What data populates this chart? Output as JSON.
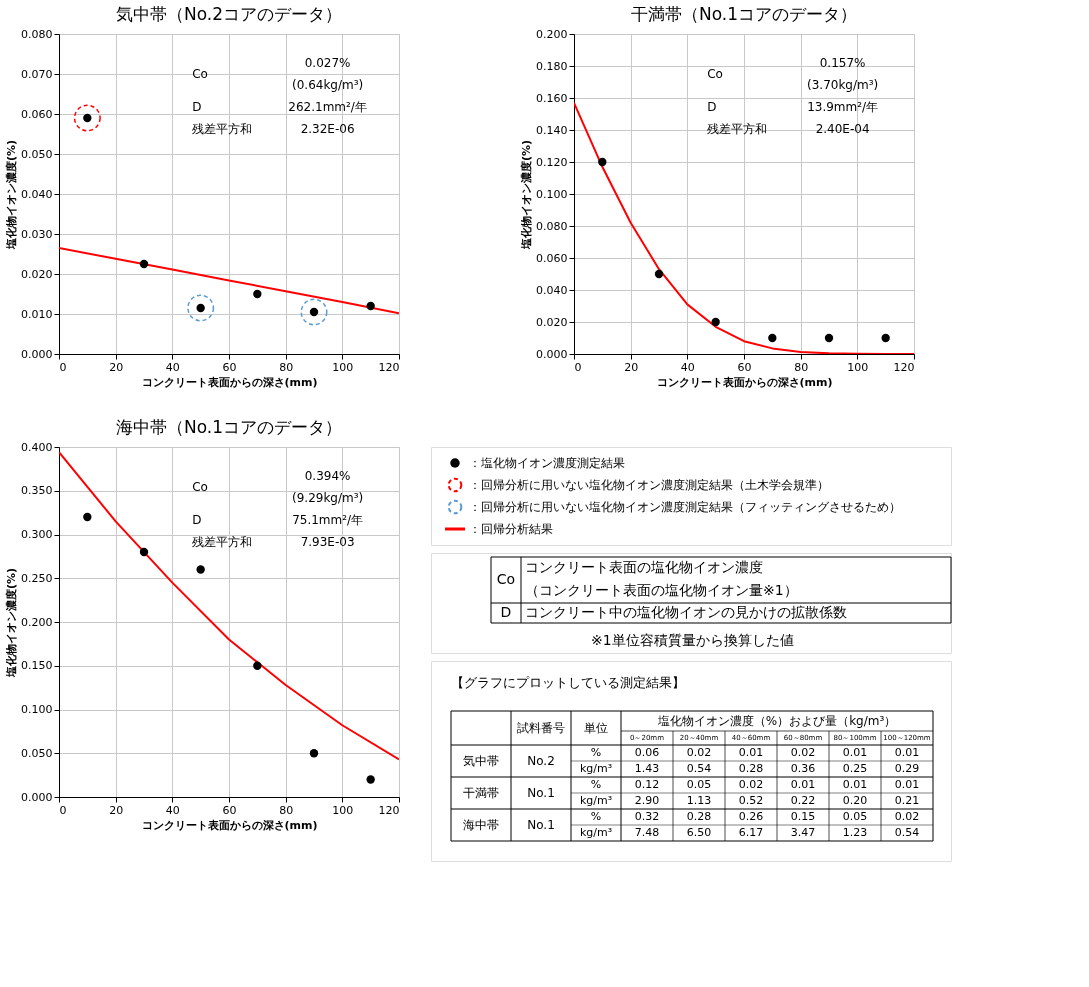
{
  "chart_data": [
    {
      "type": "scatter",
      "title": "気中帯（No.2コアのデータ）",
      "xlabel": "コンクリート表面からの深さ(mm)",
      "ylabel": "塩化物イオン濃度(%)",
      "xlim": [
        0,
        120
      ],
      "xticks": [
        0,
        20,
        40,
        60,
        80,
        100,
        120
      ],
      "ylim": [
        0,
        0.08
      ],
      "yticks": [
        {
          "value": 0,
          "label": "0.000"
        },
        {
          "value": 0.01,
          "label": "0.010"
        },
        {
          "value": 0.02,
          "label": "0.020"
        },
        {
          "value": 0.03,
          "label": "0.030"
        },
        {
          "value": 0.04,
          "label": "0.040"
        },
        {
          "value": 0.05,
          "label": "0.050"
        },
        {
          "value": 0.06,
          "label": "0.060"
        },
        {
          "value": 0.07,
          "label": "0.070"
        },
        {
          "value": 0.08,
          "label": "0.080"
        }
      ],
      "grid": true,
      "legend": "bottom right",
      "series": [
        {
          "name": "：回帰分析に用いない塩化物イオン濃度測定結果（土木学会規準）",
          "type": "scatter",
          "marker": "circle",
          "line_style": "dashed",
          "color": "#ff0000",
          "x": [
            10
          ],
          "values": [
            0.059
          ]
        },
        {
          "name": "：回帰分析に用いない塩化物イオン濃度測定結果（フィッティングさせるため）",
          "type": "scatter",
          "marker": "circle",
          "line_style": "dashed",
          "color": "#5b9bd5",
          "x": [
            50,
            90
          ],
          "values": [
            0.0115,
            0.0105
          ]
        },
        {
          "name": "：回帰分析結果",
          "type": "line",
          "line_style": "solid",
          "color": "#ff0000",
          "x": [
            0,
            20,
            40,
            60,
            80,
            100,
            120
          ],
          "values": [
            0.0265,
            0.0238,
            0.0211,
            0.0184,
            0.0157,
            0.013,
            0.0102
          ]
        },
        {
          "name": "：塩化物イオン濃度測定結果",
          "type": "scatter",
          "marker": "circle",
          "line_style": "solid",
          "color": "#000000",
          "x": [
            10,
            30,
            50,
            70,
            90,
            110
          ],
          "values": [
            0.059,
            0.0225,
            0.0115,
            0.015,
            0.0105,
            0.012
          ]
        }
      ],
      "annotations": [
        "Co",
        "0.027%",
        "(0.64kg/m³)",
        "D",
        "262.1mm²/年",
        "残差平方和",
        "2.32E-06"
      ]
    },
    {
      "type": "scatter",
      "title": "干満帯（No.1コアのデータ）",
      "xlabel": "コンクリート表面からの深さ(mm)",
      "ylabel": "塩化物イオン濃度(%)",
      "xlim": [
        0,
        120
      ],
      "xticks": [
        0,
        20,
        40,
        60,
        80,
        100,
        120
      ],
      "ylim": [
        0,
        0.2
      ],
      "yticks": [
        {
          "value": 0,
          "label": "0.000"
        },
        {
          "value": 0.02,
          "label": "0.020"
        },
        {
          "value": 0.04,
          "label": "0.040"
        },
        {
          "value": 0.06,
          "label": "0.060"
        },
        {
          "value": 0.08,
          "label": "0.080"
        },
        {
          "value": 0.1,
          "label": "0.100"
        },
        {
          "value": 0.12,
          "label": "0.120"
        },
        {
          "value": 0.14,
          "label": "0.140"
        },
        {
          "value": 0.16,
          "label": "0.160"
        },
        {
          "value": 0.18,
          "label": "0.180"
        },
        {
          "value": 0.2,
          "label": "0.200"
        }
      ],
      "grid": true,
      "series": [
        {
          "type": "line",
          "line_style": "solid",
          "color": "#ff0000",
          "x": [
            0,
            10,
            20,
            30,
            40,
            50,
            60,
            70,
            80,
            90,
            100,
            110,
            120
          ],
          "values": [
            0.157,
            0.117,
            0.082,
            0.053,
            0.031,
            0.017,
            0.008,
            0.0035,
            0.0013,
            0.0004,
            0.0001,
            0,
            0
          ]
        },
        {
          "type": "scatter",
          "marker": "circle",
          "line_style": "solid",
          "color": "#000000",
          "x": [
            10,
            30,
            50,
            70,
            90,
            110
          ],
          "values": [
            0.12,
            0.05,
            0.02,
            0.01,
            0.01,
            0.01
          ]
        }
      ],
      "annotations": [
        "Co",
        "0.157%",
        "(3.70kg/m³)",
        "D",
        "13.9mm²/年",
        "残差平方和",
        "2.40E-04"
      ]
    },
    {
      "type": "scatter",
      "title": "海中帯（No.1コアのデータ）",
      "xlabel": "コンクリート表面からの深さ(mm)",
      "ylabel": "塩化物イオン濃度(%)",
      "xlim": [
        0,
        120
      ],
      "xticks": [
        0,
        20,
        40,
        60,
        80,
        100,
        120
      ],
      "ylim": [
        0,
        0.4
      ],
      "yticks": [
        {
          "value": 0,
          "label": "0.000"
        },
        {
          "value": 0.05,
          "label": "0.050"
        },
        {
          "value": 0.1,
          "label": "0.100"
        },
        {
          "value": 0.15,
          "label": "0.150"
        },
        {
          "value": 0.2,
          "label": "0.200"
        },
        {
          "value": 0.25,
          "label": "0.250"
        },
        {
          "value": 0.3,
          "label": "0.300"
        },
        {
          "value": 0.35,
          "label": "0.350"
        },
        {
          "value": 0.4,
          "label": "0.400"
        }
      ],
      "grid": true,
      "series": [
        {
          "type": "line",
          "line_style": "solid",
          "color": "#ff0000",
          "x": [
            0,
            20,
            40,
            60,
            80,
            100,
            120
          ],
          "values": [
            0.394,
            0.315,
            0.245,
            0.18,
            0.128,
            0.082,
            0.043
          ]
        },
        {
          "type": "scatter",
          "marker": "circle",
          "line_style": "solid",
          "color": "#000000",
          "x": [
            10,
            30,
            50,
            70,
            90,
            110
          ],
          "values": [
            0.32,
            0.28,
            0.26,
            0.15,
            0.05,
            0.02
          ]
        }
      ],
      "annotations": [
        "Co",
        "0.394%",
        "(9.29kg/m³)",
        "D",
        "75.1mm²/年",
        "残差平方和",
        "7.93E-03"
      ]
    },
    {
      "type": "other",
      "annotations": [
        "Co",
        "コンクリート表面の塩化物イオン濃度",
        "（コンクリート表面の塩化物イオン量※1）",
        "D",
        "コンクリート中の塩化物イオンの見かけの拡散係数",
        "※1単位容積質量から換算した値"
      ]
    },
    {
      "type": "other",
      "title": "【グラフにプロットしている測定結果】",
      "xlabel": "塩化物イオン濃度（%）および量（kg/m³）",
      "annotations": [
        "試料番号"
      ],
      "categories": [
        "単位",
        "0～20mm",
        "20～40mm",
        "40～60mm",
        "60～80mm",
        "80～100mm",
        "100～120mm"
      ],
      "y_categories": [
        "気中帯",
        "干満帯",
        "海中帯"
      ],
      "y2_categories": [
        "No.2",
        "No.1",
        "No.1"
      ],
      "cell_labels": [
        [
          "%",
          "0.06",
          "0.02",
          "0.01",
          "0.02",
          "0.01",
          "0.01"
        ],
        [
          "kg/m³",
          "1.43",
          "0.54",
          "0.28",
          "0.36",
          "0.25",
          "0.29"
        ],
        [
          "%",
          "0.12",
          "0.05",
          "0.02",
          "0.01",
          "0.01",
          "0.01"
        ],
        [
          "kg/m³",
          "2.90",
          "1.13",
          "0.52",
          "0.22",
          "0.20",
          "0.21"
        ],
        [
          "%",
          "0.32",
          "0.28",
          "0.26",
          "0.15",
          "0.05",
          "0.02"
        ],
        [
          "kg/m³",
          "7.48",
          "6.50",
          "6.17",
          "3.47",
          "1.23",
          "0.54"
        ]
      ]
    }
  ]
}
